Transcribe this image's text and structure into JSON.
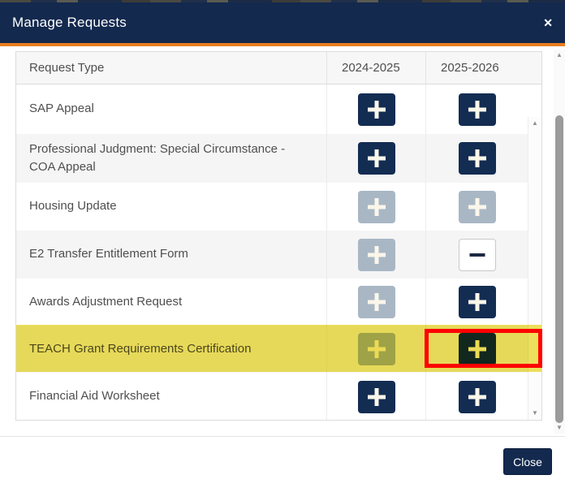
{
  "modal": {
    "title": "Manage Requests",
    "footer": {
      "close_label": "Close"
    }
  },
  "icons": {
    "close": "✕",
    "scroll_up": "▲",
    "scroll_down": "▼"
  },
  "colors": {
    "header_bg": "#13294e",
    "accent_orange": "#e87d1e",
    "button_navy": "#132c52",
    "button_disabled": "#a9b7c5",
    "highlight_yellow": "#f0e25c",
    "annotation_red": "#fe0000"
  },
  "table": {
    "columns": [
      "Request Type",
      "2024-2025",
      "2025-2026"
    ],
    "rows": [
      {
        "label": "SAP Appeal",
        "cells": [
          "add",
          "add"
        ]
      },
      {
        "label": "Professional Judgment: Special Circumstance - COA Appeal",
        "cells": [
          "add",
          "add"
        ]
      },
      {
        "label": "Housing Update",
        "cells": [
          "add-disabled",
          "add-disabled"
        ]
      },
      {
        "label": "E2 Transfer Entitlement Form",
        "cells": [
          "add-disabled",
          "remove"
        ]
      },
      {
        "label": "Awards Adjustment Request",
        "cells": [
          "add-disabled",
          "add"
        ]
      },
      {
        "label": "TEACH Grant Requirements Certification",
        "cells": [
          "add-disabled",
          "add"
        ],
        "highlighted": true
      },
      {
        "label": "Financial Aid Worksheet",
        "cells": [
          "add",
          "add"
        ]
      }
    ]
  },
  "annotations": {
    "highlighted_row": "TEACH Grant Requirements Certification",
    "red_box_target": "2025-2026 add button for TEACH Grant Requirements Certification"
  }
}
